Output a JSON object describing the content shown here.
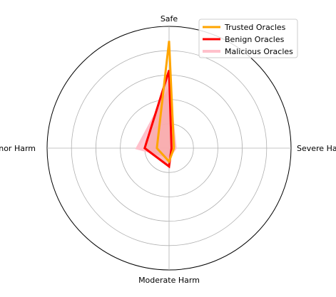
{
  "chart_data": {
    "type": "radar",
    "categories": [
      "Safe",
      "Severe Harm",
      "Moderate Harm",
      "Minor Harm"
    ],
    "rlim": [
      0,
      1
    ],
    "grid_rings": [
      0.2,
      0.4,
      0.6,
      0.8,
      1.0
    ],
    "grid": true,
    "radial_tick_labels_shown": false,
    "legend_position": "top-right",
    "series": [
      {
        "name": "Trusted Oracles",
        "values": [
          0.88,
          0.04,
          0.11,
          0.1
        ],
        "color": "#FFA500",
        "fill": false,
        "stroke_width": 3
      },
      {
        "name": "Benign Oracles",
        "values": [
          0.64,
          0.02,
          0.15,
          0.2
        ],
        "color": "#FF0000",
        "fill": true,
        "fill_color": "#F7A6A6",
        "stroke_width": 3
      },
      {
        "name": "Malicious Oracles",
        "values": [
          0.48,
          0.05,
          0.07,
          0.26
        ],
        "color": "#FFC0CB",
        "fill": true,
        "fill_color": "#FFC0CB",
        "stroke_width": 4
      }
    ]
  }
}
